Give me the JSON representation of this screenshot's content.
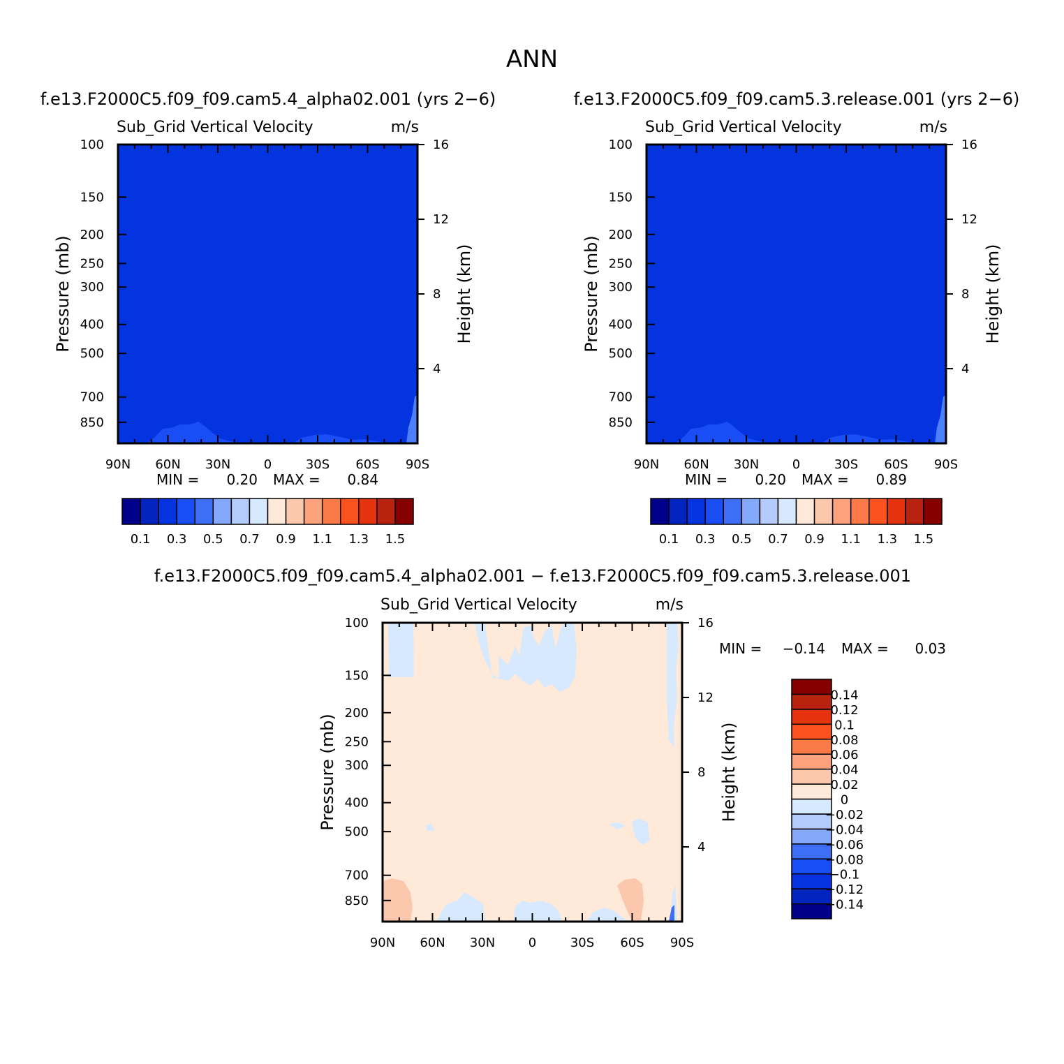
{
  "page_title": "ANN",
  "colors": {
    "plot_base": "#0433e0",
    "plot_low_band": "#1a4ef5",
    "plot_edge": "#4c7ff8",
    "diff_base": "#ffe9d8",
    "diff_blue": "#d6e9ff",
    "diff_orange": "#fcc8ad",
    "diff_deep_blue": "#3d6ef5"
  },
  "chart_data": [
    {
      "type": "heatmap",
      "header": "f.e13.F2000C5.f09_f09.cam5.4_alpha02.001 (yrs 2−6)",
      "title": "Sub_Grid Vertical Velocity",
      "units": "m/s",
      "ylabel": "Pressure (mb)",
      "y2label": "Height (km)",
      "x_ticks": [
        "90N",
        "60N",
        "30N",
        "0",
        "30S",
        "60S",
        "90S"
      ],
      "x_values": [
        90,
        60,
        30,
        0,
        -30,
        -60,
        -90
      ],
      "y_ticks": [
        "100",
        "150",
        "200",
        "250",
        "300",
        "400",
        "500",
        "700",
        "850"
      ],
      "y_values": [
        100,
        150,
        200,
        250,
        300,
        400,
        500,
        700,
        850
      ],
      "y2_ticks": [
        "16",
        "12",
        "8",
        "4"
      ],
      "y2_values": [
        16,
        12,
        8,
        4
      ],
      "ylim": [
        100,
        1000
      ],
      "yscale": "log",
      "min_label": "MIN =",
      "min_value": "0.20",
      "max_label": "MAX =",
      "max_value": "0.84",
      "colorbar": {
        "orientation": "horizontal",
        "colors": [
          "#00008b",
          "#0225c0",
          "#0433e0",
          "#1a4ef5",
          "#3d6ef5",
          "#84a8fa",
          "#b3ccfc",
          "#d6e9ff",
          "#ffe9d8",
          "#fcc8ad",
          "#fca37e",
          "#fc7a48",
          "#fc5220",
          "#e53310",
          "#b82310",
          "#870000"
        ],
        "labels": [
          "0.1",
          "0.3",
          "0.5",
          "0.7",
          "0.9",
          "1.1",
          "1.3",
          "1.5"
        ]
      }
    },
    {
      "type": "heatmap",
      "header": "f.e13.F2000C5.f09_f09.cam5.3.release.001 (yrs 2−6)",
      "title": "Sub_Grid Vertical Velocity",
      "units": "m/s",
      "ylabel": "Pressure (mb)",
      "y2label": "Height (km)",
      "x_ticks": [
        "90N",
        "60N",
        "30N",
        "0",
        "30S",
        "60S",
        "90S"
      ],
      "x_values": [
        90,
        60,
        30,
        0,
        -30,
        -60,
        -90
      ],
      "y_ticks": [
        "100",
        "150",
        "200",
        "250",
        "300",
        "400",
        "500",
        "700",
        "850"
      ],
      "y_values": [
        100,
        150,
        200,
        250,
        300,
        400,
        500,
        700,
        850
      ],
      "y2_ticks": [
        "16",
        "12",
        "8",
        "4"
      ],
      "y2_values": [
        16,
        12,
        8,
        4
      ],
      "ylim": [
        100,
        1000
      ],
      "yscale": "log",
      "min_label": "MIN =",
      "min_value": "0.20",
      "max_label": "MAX =",
      "max_value": "0.89",
      "colorbar": {
        "orientation": "horizontal",
        "colors": [
          "#00008b",
          "#0225c0",
          "#0433e0",
          "#1a4ef5",
          "#3d6ef5",
          "#84a8fa",
          "#b3ccfc",
          "#d6e9ff",
          "#ffe9d8",
          "#fcc8ad",
          "#fca37e",
          "#fc7a48",
          "#fc5220",
          "#e53310",
          "#b82310",
          "#870000"
        ],
        "labels": [
          "0.1",
          "0.3",
          "0.5",
          "0.7",
          "0.9",
          "1.1",
          "1.3",
          "1.5"
        ]
      }
    },
    {
      "type": "heatmap",
      "header": "f.e13.F2000C5.f09_f09.cam5.4_alpha02.001 − f.e13.F2000C5.f09_f09.cam5.3.release.001",
      "title": "Sub_Grid Vertical Velocity",
      "units": "m/s",
      "ylabel": "Pressure (mb)",
      "y2label": "Height (km)",
      "x_ticks": [
        "90N",
        "60N",
        "30N",
        "0",
        "30S",
        "60S",
        "90S"
      ],
      "x_values": [
        90,
        60,
        30,
        0,
        -30,
        -60,
        -90
      ],
      "y_ticks": [
        "100",
        "150",
        "200",
        "250",
        "300",
        "400",
        "500",
        "700",
        "850"
      ],
      "y_values": [
        100,
        150,
        200,
        250,
        300,
        400,
        500,
        700,
        850
      ],
      "y2_ticks": [
        "16",
        "12",
        "8",
        "4"
      ],
      "y2_values": [
        16,
        12,
        8,
        4
      ],
      "ylim": [
        100,
        1000
      ],
      "yscale": "log",
      "min_label": "MIN =",
      "min_value": "−0.14",
      "max_label": "MAX =",
      "max_value": "0.03",
      "colorbar": {
        "orientation": "vertical",
        "colors": [
          "#00008b",
          "#0225c0",
          "#0433e0",
          "#1a4ef5",
          "#3d6ef5",
          "#84a8fa",
          "#b3ccfc",
          "#d6e9ff",
          "#ffe9d8",
          "#fcc8ad",
          "#fca37e",
          "#fc7a48",
          "#fc5220",
          "#e53310",
          "#b82310",
          "#870000"
        ],
        "labels": [
          "−0.14",
          "−0.12",
          "−0.1",
          "−0.08",
          "−0.06",
          "−0.04",
          "−0.02",
          "0",
          "0.02",
          "0.04",
          "0.06",
          "0.08",
          "0.1",
          "0.12",
          "0.14"
        ]
      }
    }
  ]
}
